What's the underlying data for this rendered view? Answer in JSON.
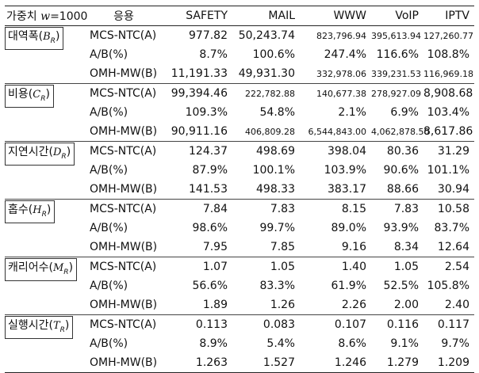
{
  "table": {
    "header": {
      "weight_prefix": "가중치 ",
      "weight_var": "w",
      "weight_value": "=1000",
      "scheme": "응용",
      "columns": [
        "SAFETY",
        "MAIL",
        "WWW",
        "VoIP",
        "IPTV"
      ]
    },
    "groups": [
      {
        "label": "대역폭(",
        "symbol": "B",
        "sub": "R",
        "close": ")",
        "rows": [
          {
            "scheme": "MCS-NTC(A)",
            "values": [
              "977.82",
              "50,243.74",
              "823,796.94",
              "395,613.94",
              "127,260.77"
            ]
          },
          {
            "scheme": "A/B(%)",
            "values": [
              "8.7%",
              "100.6%",
              "247.4%",
              "116.6%",
              "108.8%"
            ]
          },
          {
            "scheme": "OMH-MW(B)",
            "values": [
              "11,191.33",
              "49,931.30",
              "332,978.06",
              "339,231.53",
              "116,969.18"
            ]
          }
        ]
      },
      {
        "label": "비용(",
        "symbol": "C",
        "sub": "R",
        "close": ")",
        "rows": [
          {
            "scheme": "MCS-NTC(A)",
            "values": [
              "99,394.46",
              "222,782.88",
              "140,677.38",
              "278,927.09",
              "8,908.68"
            ]
          },
          {
            "scheme": "A/B(%)",
            "values": [
              "109.3%",
              "54.8%",
              "2.1%",
              "6.9%",
              "103.4%"
            ]
          },
          {
            "scheme": "OMH-MW(B)",
            "values": [
              "90,911.16",
              "406,809.28",
              "6,544,843.00",
              "4,062,878.50",
              "8,617.86"
            ]
          }
        ]
      },
      {
        "label": "지연시간(",
        "symbol": "D",
        "sub": "R",
        "close": ")",
        "rows": [
          {
            "scheme": "MCS-NTC(A)",
            "values": [
              "124.37",
              "498.69",
              "398.04",
              "80.36",
              "31.29"
            ]
          },
          {
            "scheme": "A/B(%)",
            "values": [
              "87.9%",
              "100.1%",
              "103.9%",
              "90.6%",
              "101.1%"
            ]
          },
          {
            "scheme": "OMH-MW(B)",
            "values": [
              "141.53",
              "498.33",
              "383.17",
              "88.66",
              "30.94"
            ]
          }
        ]
      },
      {
        "label": "홉수(",
        "symbol": "H",
        "sub": "R",
        "close": ")",
        "rows": [
          {
            "scheme": "MCS-NTC(A)",
            "values": [
              "7.84",
              "7.83",
              "8.15",
              "7.83",
              "10.58"
            ]
          },
          {
            "scheme": "A/B(%)",
            "values": [
              "98.6%",
              "99.7%",
              "89.0%",
              "93.9%",
              "83.7%"
            ]
          },
          {
            "scheme": "OMH-MW(B)",
            "values": [
              "7.95",
              "7.85",
              "9.16",
              "8.34",
              "12.64"
            ]
          }
        ]
      },
      {
        "label": "캐리어수(",
        "symbol": "M",
        "sub": "R",
        "close": ")",
        "rows": [
          {
            "scheme": "MCS-NTC(A)",
            "values": [
              "1.07",
              "1.05",
              "1.40",
              "1.05",
              "2.54"
            ]
          },
          {
            "scheme": "A/B(%)",
            "values": [
              "56.6%",
              "83.3%",
              "61.9%",
              "52.5%",
              "105.8%"
            ]
          },
          {
            "scheme": "OMH-MW(B)",
            "values": [
              "1.89",
              "1.26",
              "2.26",
              "2.00",
              "2.40"
            ]
          }
        ]
      },
      {
        "label": "실행시간(",
        "symbol": "T",
        "sub": "R",
        "close": ")",
        "rows": [
          {
            "scheme": "MCS-NTC(A)",
            "values": [
              "0.113",
              "0.083",
              "0.107",
              "0.116",
              "0.117"
            ]
          },
          {
            "scheme": "A/B(%)",
            "values": [
              "8.9%",
              "5.4%",
              "8.6%",
              "9.1%",
              "9.7%"
            ]
          },
          {
            "scheme": "OMH-MW(B)",
            "values": [
              "1.263",
              "1.527",
              "1.246",
              "1.279",
              "1.209"
            ]
          }
        ]
      }
    ]
  }
}
